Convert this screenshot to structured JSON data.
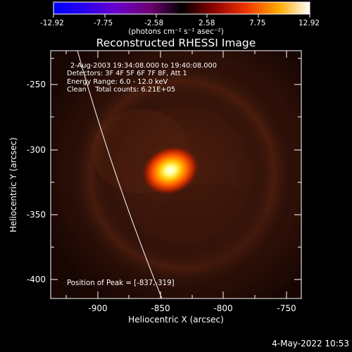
{
  "colorbar": {
    "ticks": [
      "-12.92",
      "-7.75",
      "-2.58",
      "2.58",
      "7.75",
      "12.92"
    ],
    "units": "(photons cm⁻² s⁻¹ asec⁻²)",
    "range": [
      -12.92,
      12.92
    ]
  },
  "title": "Reconstructed RHESSI Image",
  "info": {
    "time_range": "2-Aug-2003 19:34:08.000 to 19:40:08.000",
    "detectors": "Detectors: 3F 4F 5F 6F 7F 8F, Att 1",
    "energy_range": "Energy Range: 6.0 - 12.0 keV",
    "algorithm": "Clean    Total counts: 6.21E+05"
  },
  "peak_label": "Position of Peak = [-837,-319]",
  "axes": {
    "xlabel": "Heliocentric X (arcsec)",
    "ylabel": "Heliocentric Y (arcsec)",
    "xticks": [
      "-900",
      "-850",
      "-800",
      "-750"
    ],
    "yticks": [
      "-250",
      "-300",
      "-350",
      "-400"
    ]
  },
  "timestamp": "4-May-2022 10:53"
}
